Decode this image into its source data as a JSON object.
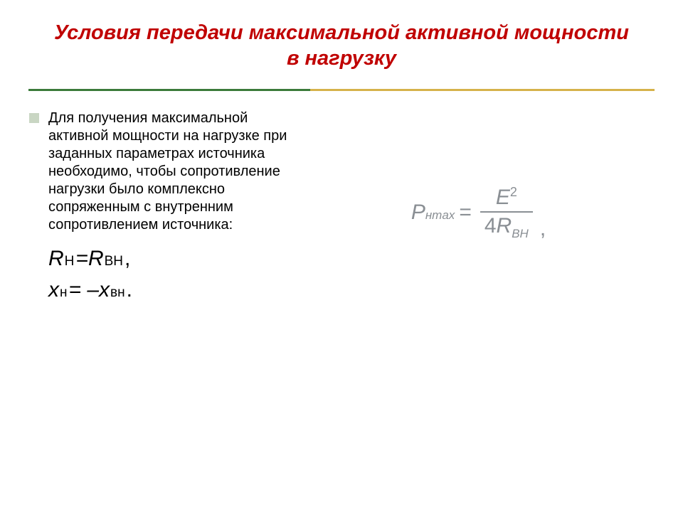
{
  "title": {
    "text": "Условия передачи максимальной активной мощности в нагрузку",
    "color": "#c00000",
    "fontsize": 29
  },
  "divider": {
    "color1": "#3b7a3a",
    "color2": "#d6b24a",
    "split_pct": 45
  },
  "bullet": {
    "color": "#c9d6c3",
    "size": 16
  },
  "body": {
    "text": "Для получения максимальной активной мощности на нагрузке при заданных параметрах источника необходимо, чтобы сопротивление нагрузки было комплексно сопряженным с внутренним сопротивлением источника:",
    "color": "#000000",
    "fontsize": 20
  },
  "eq": {
    "fontsize": 30,
    "sub_fontsize": 19,
    "line1": {
      "R": "R",
      "sub1": "Н",
      "eq": " = ",
      "R2": "R",
      "sub2": "BH",
      "end": ","
    },
    "line2": {
      "X": "х",
      "sub1": "н",
      "eq": " = –",
      "X2": "х",
      "sub2": "вн",
      "end": "."
    }
  },
  "formula": {
    "color": "#8a8f94",
    "fontsize": 30,
    "sup_fontsize": 18,
    "sub_fontsize": 17,
    "lhs_P": "P",
    "lhs_sub": "нmax",
    "eq": " = ",
    "num_E": "E",
    "num_sup": "2",
    "den_4": "4",
    "den_R": "R",
    "den_sub": "BH",
    "trail": ","
  },
  "background": "#ffffff"
}
